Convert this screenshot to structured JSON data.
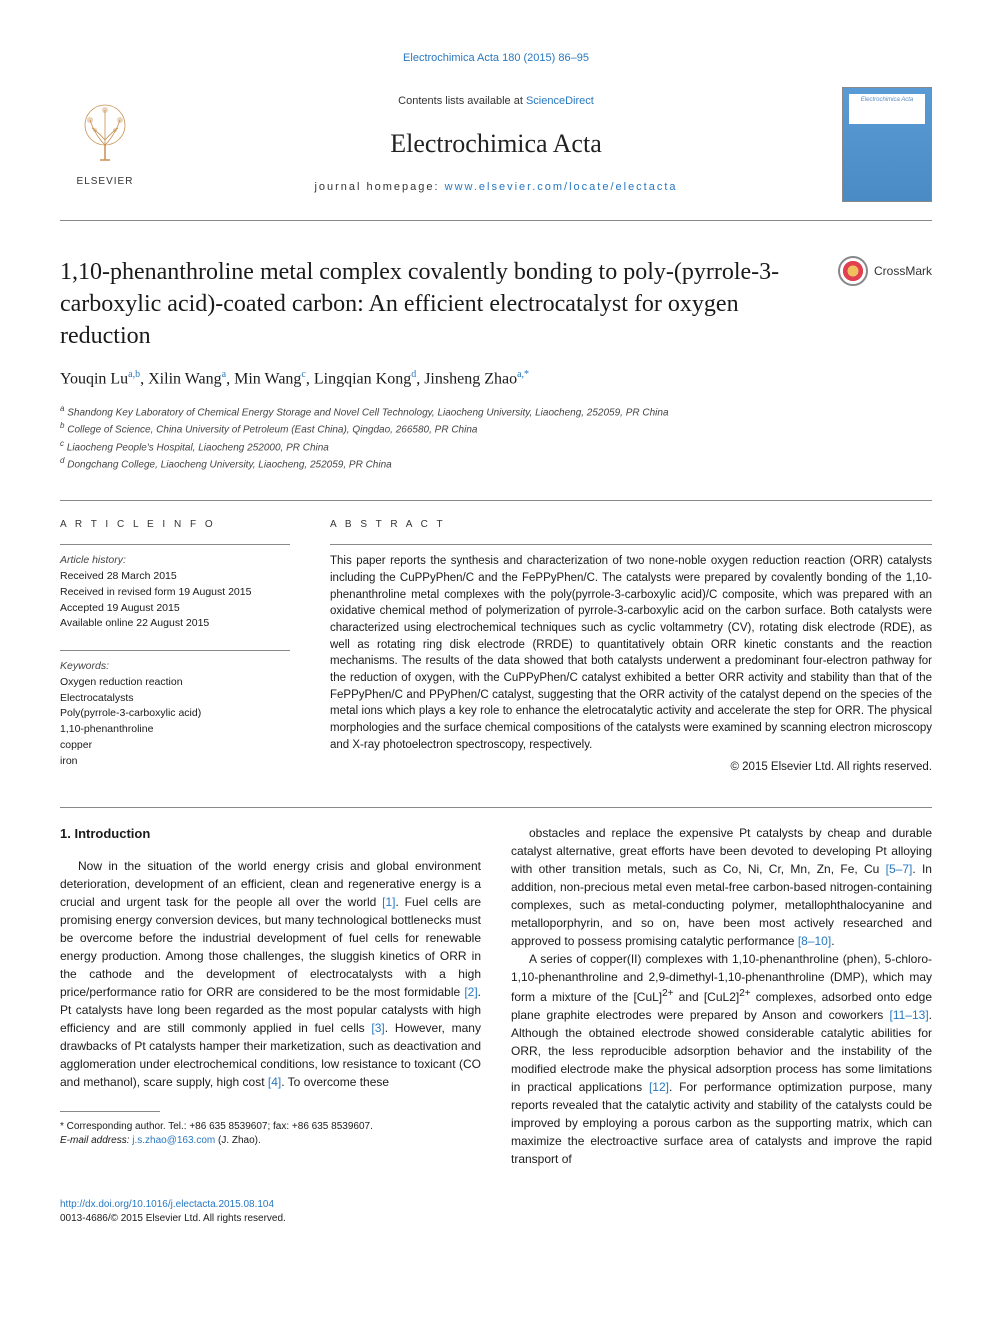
{
  "top_citation": "Electrochimica Acta 180 (2015) 86–95",
  "header": {
    "contents_text": "Contents lists available at ",
    "contents_link": "ScienceDirect",
    "journal_name": "Electrochimica Acta",
    "homepage_label": "journal homepage: ",
    "homepage_url": "www.elsevier.com/locate/electacta",
    "publisher": "ELSEVIER",
    "cover_text": "Electrochimica Acta"
  },
  "crossmark_label": "CrossMark",
  "title": "1,10-phenanthroline metal complex covalently bonding to poly-(pyrrole-3-carboxylic acid)-coated carbon: An efficient electrocatalyst for oxygen reduction",
  "authors_html": "Youqin Lu<sup>a,b</sup>, Xilin Wang<sup>a</sup>, Min Wang<sup>c</sup>, Lingqian Kong<sup>d</sup>, Jinsheng Zhao<sup>a,*</sup>",
  "affiliations": [
    "<sup>a</sup> Shandong Key Laboratory of Chemical Energy Storage and Novel Cell Technology, Liaocheng University, Liaocheng, 252059, PR China",
    "<sup>b</sup> College of Science, China University of Petroleum (East China), Qingdao, 266580, PR China",
    "<sup>c</sup> Liaocheng People's Hospital, Liaocheng 252000, PR China",
    "<sup>d</sup> Dongchang College, Liaocheng University, Liaocheng, 252059, PR China"
  ],
  "article_info_head": "A R T I C L E  I N F O",
  "history": {
    "label": "Article history:",
    "received": "Received 28 March 2015",
    "revised": "Received in revised form 19 August 2015",
    "accepted": "Accepted 19 August 2015",
    "online": "Available online 22 August 2015"
  },
  "keywords": {
    "label": "Keywords:",
    "items": [
      "Oxygen reduction reaction",
      "Electrocatalysts",
      "Poly(pyrrole-3-carboxylic acid)",
      "1,10-phenanthroline",
      "copper",
      "iron"
    ]
  },
  "abstract_head": "A B S T R A C T",
  "abstract_text": "This paper reports the synthesis and characterization of two none-noble oxygen reduction reaction (ORR) catalysts including the CuPPyPhen/C and the FePPyPhen/C. The catalysts were prepared by covalently bonding of the 1,10-phenanthroline metal complexes with the poly(pyrrole-3-carboxylic acid)/C composite, which was prepared with an oxidative chemical method of polymerization of pyrrole-3-carboxylic acid on the carbon surface. Both catalysts were characterized using electrochemical techniques such as cyclic voltammetry (CV), rotating disk electrode (RDE), as well as rotating ring disk electrode (RRDE) to quantitatively obtain ORR kinetic constants and the reaction mechanisms. The results of the data showed that both catalysts underwent a predominant four-electron pathway for the reduction of oxygen, with the CuPPyPhen/C catalyst exhibited a better ORR activity and stability than that of the FePPyPhen/C and PPyPhen/C catalyst, suggesting that the ORR activity of the catalyst depend on the species of the metal ions which plays a key role to enhance the eletrocatalytic activity and accelerate the step for ORR. The physical morphologies and the surface chemical compositions of the catalysts were examined by scanning electron microscopy and X-ray photoelectron spectroscopy, respectively.",
  "copyright": "© 2015 Elsevier Ltd. All rights reserved.",
  "intro_head": "1. Introduction",
  "intro_p1": "Now in the situation of the world energy crisis and global environment deterioration, development of an efficient, clean and regenerative energy is a crucial and urgent task for the people all over the world <span class=\"ref\">[1]</span>. Fuel cells are promising energy conversion devices, but many technological bottlenecks must be overcome before the industrial development of fuel cells for renewable energy production. Among those challenges, the sluggish kinetics of ORR in the cathode and the development of electrocatalysts with a high price/performance ratio for ORR are considered to be the most formidable <span class=\"ref\">[2]</span>. Pt catalysts have long been regarded as the most popular catalysts with high efficiency and are still commonly applied in fuel cells <span class=\"ref\">[3]</span>. However, many drawbacks of Pt catalysts hamper their marketization, such as deactivation and agglomeration under electrochemical conditions, low resistance to toxicant (CO and methanol), scare supply, high cost <span class=\"ref\">[4]</span>. To overcome these",
  "intro_p2": "obstacles and replace the expensive Pt catalysts by cheap and durable catalyst alternative, great efforts have been devoted to developing Pt alloying with other transition metals, such as Co, Ni, Cr, Mn, Zn, Fe, Cu <span class=\"ref\">[5–7]</span>. In addition, non-precious metal even metal-free carbon-based nitrogen-containing complexes, such as metal-conducting polymer, metallophthalocyanine and metalloporphyrin, and so on, have been most actively researched and approved to possess promising catalytic performance <span class=\"ref\">[8–10]</span>.",
  "intro_p3": "A series of copper(II) complexes with 1,10-phenanthroline (phen), 5-chloro-1,10-phenanthroline and 2,9-dimethyl-1,10-phenanthroline (DMP), which may form a mixture of the [CuL]<sup>2+</sup> and [CuL2]<sup>2+</sup> complexes, adsorbed onto edge plane graphite electrodes were prepared by Anson and coworkers <span class=\"ref\">[11–13]</span>. Although the obtained electrode showed considerable catalytic abilities for ORR, the less reproducible adsorption behavior and the instability of the modified electrode make the physical adsorption process has some limitations in practical applications <span class=\"ref\">[12]</span>. For performance optimization purpose, many reports revealed that the catalytic activity and stability of the catalysts could be improved by employing a porous carbon as the supporting matrix, which can maximize the electroactive surface area of catalysts and improve the rapid transport of",
  "corresponding": {
    "text": "* Corresponding author. Tel.: +86 635 8539607; fax: +86 635 8539607.",
    "email_label": "E-mail address: ",
    "email": "j.s.zhao@163.com",
    "email_suffix": " (J. Zhao)."
  },
  "bottom": {
    "doi": "http://dx.doi.org/10.1016/j.electacta.2015.08.104",
    "issn_copy": "0013-4686/© 2015 Elsevier Ltd. All rights reserved."
  },
  "colors": {
    "link": "#2878c0",
    "text": "#1a1a1a",
    "border": "#888"
  }
}
